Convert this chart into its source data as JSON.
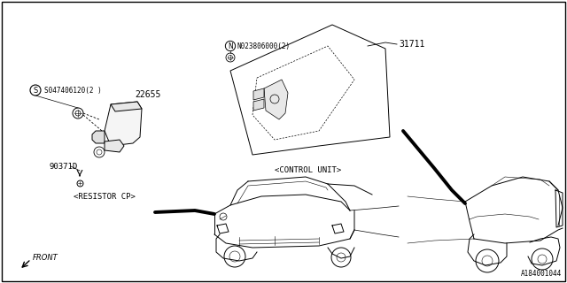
{
  "bg_color": "#ffffff",
  "border_color": "#000000",
  "part_number_bottom_right": "A184001044",
  "labels": {
    "resistor_cp": "<RESISTOR CP>",
    "control_unit": "<CONTROL UNIT>",
    "front": "FRONT",
    "part_22655": "22655",
    "part_90371D": "90371D",
    "part_S047406120": "S047406120(2 )",
    "part_N023806000": "N023806000(2)",
    "part_31711": "31711"
  }
}
